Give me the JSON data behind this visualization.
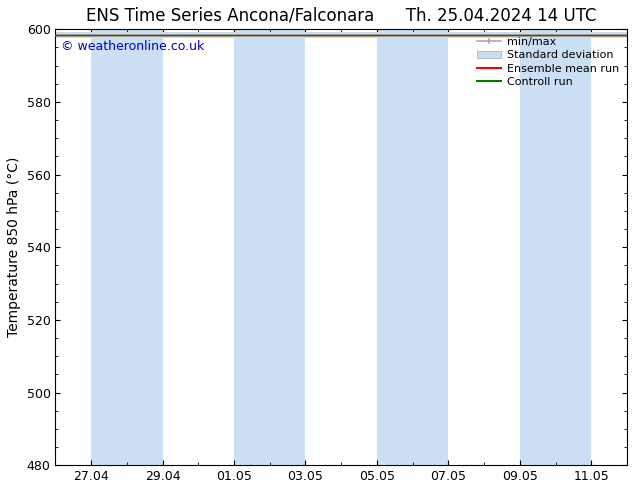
{
  "title": "ENS Time Series Ancona/Falconara",
  "title_right": "Th. 25.04.2024 14 UTC",
  "ylabel": "Temperature 850 hPa (°C)",
  "watermark": "© weatheronline.co.uk",
  "watermark_color": "#0000cc",
  "ylim": [
    480,
    600
  ],
  "yticks": [
    480,
    500,
    520,
    540,
    560,
    580,
    600
  ],
  "x_tick_labels": [
    "27.04",
    "29.04",
    "01.05",
    "03.05",
    "05.05",
    "07.05",
    "09.05",
    "11.05"
  ],
  "x_tick_positions": [
    1,
    3,
    5,
    7,
    9,
    11,
    13,
    15
  ],
  "x_num_points": 16,
  "xlim": [
    0,
    16
  ],
  "background_color": "#ffffff",
  "plot_bg_color": "#ffffff",
  "shade_bands": [
    {
      "x_start": 1.0,
      "x_end": 3.0,
      "color": "#cce0f5"
    },
    {
      "x_start": 5.0,
      "x_end": 7.0,
      "color": "#cce0f5"
    },
    {
      "x_start": 9.0,
      "x_end": 11.0,
      "color": "#cce0f5"
    },
    {
      "x_start": 13.0,
      "x_end": 15.0,
      "color": "#cce0f5"
    }
  ],
  "legend_entries": [
    {
      "label": "min/max",
      "color": "#aaaaaa",
      "lw": 1.2,
      "style": "minmax"
    },
    {
      "label": "Standard deviation",
      "color": "#c8ddf0",
      "lw": 8,
      "style": "fill"
    },
    {
      "label": "Ensemble mean run",
      "color": "#ff0000",
      "lw": 1.5,
      "style": "line"
    },
    {
      "label": "Controll run",
      "color": "#007700",
      "lw": 1.5,
      "style": "line"
    }
  ],
  "line_y": 598.5,
  "title_fontsize": 12,
  "axis_label_fontsize": 10,
  "tick_fontsize": 9,
  "watermark_fontsize": 9,
  "legend_fontsize": 8
}
